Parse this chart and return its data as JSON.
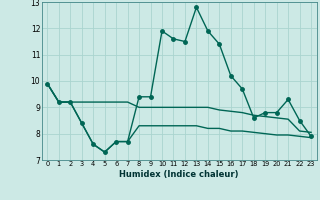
{
  "title": "",
  "xlabel": "Humidex (Indice chaleur)",
  "xlim": [
    -0.5,
    23.5
  ],
  "ylim": [
    7,
    13
  ],
  "yticks": [
    7,
    8,
    9,
    10,
    11,
    12,
    13
  ],
  "xticks": [
    0,
    1,
    2,
    3,
    4,
    5,
    6,
    7,
    8,
    9,
    10,
    11,
    12,
    13,
    14,
    15,
    16,
    17,
    18,
    19,
    20,
    21,
    22,
    23
  ],
  "background_color": "#cce9e5",
  "grid_color": "#aad4cf",
  "line_color": "#006655",
  "line1_x": [
    0,
    1,
    2,
    3,
    4,
    5,
    6,
    7,
    8,
    9,
    10,
    11,
    12,
    13,
    14,
    15,
    16,
    17,
    18,
    19,
    20,
    21,
    22,
    23
  ],
  "line1_y": [
    9.9,
    9.2,
    9.2,
    9.2,
    9.2,
    9.2,
    9.2,
    9.2,
    9.0,
    9.0,
    9.0,
    9.0,
    9.0,
    9.0,
    9.0,
    8.9,
    8.85,
    8.8,
    8.7,
    8.65,
    8.6,
    8.55,
    8.1,
    8.05
  ],
  "line2_x": [
    0,
    1,
    2,
    3,
    4,
    5,
    6,
    7,
    8,
    9,
    10,
    11,
    12,
    13,
    14,
    15,
    16,
    17,
    18,
    19,
    20,
    21,
    22,
    23
  ],
  "line2_y": [
    9.9,
    9.2,
    9.2,
    8.4,
    7.6,
    7.3,
    7.7,
    7.7,
    9.4,
    9.4,
    11.9,
    11.6,
    11.5,
    12.8,
    11.9,
    11.4,
    10.2,
    9.7,
    8.6,
    8.8,
    8.8,
    9.3,
    8.5,
    7.9
  ],
  "line3_x": [
    0,
    1,
    2,
    3,
    4,
    5,
    6,
    7,
    8,
    9,
    10,
    11,
    12,
    13,
    14,
    15,
    16,
    17,
    18,
    19,
    20,
    21,
    22,
    23
  ],
  "line3_y": [
    9.9,
    9.2,
    9.2,
    8.4,
    7.6,
    7.3,
    7.7,
    7.7,
    8.3,
    8.3,
    8.3,
    8.3,
    8.3,
    8.3,
    8.2,
    8.2,
    8.1,
    8.1,
    8.05,
    8.0,
    7.95,
    7.95,
    7.9,
    7.85
  ]
}
